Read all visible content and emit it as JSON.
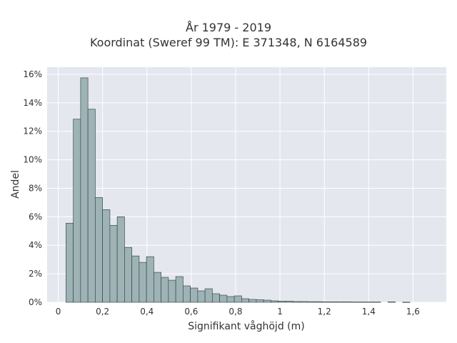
{
  "chart_data": {
    "type": "bar",
    "title": [
      "År 1979 - 2019",
      "Koordinat (Sweref 99 TM): E 371348, N 6164589"
    ],
    "xlabel": "Signifikant våghöjd (m)",
    "ylabel": "Andel",
    "xlim": [
      -0.05,
      1.75
    ],
    "ylim": [
      0,
      16.5
    ],
    "x_ticks": [
      0,
      0.2,
      0.4,
      0.6,
      0.8,
      1.0,
      1.2,
      1.4,
      1.6
    ],
    "x_tick_labels": [
      "0",
      "0,2",
      "0,4",
      "0,6",
      "0,8",
      "1",
      "1,2",
      "1,4",
      "1,6"
    ],
    "y_ticks": [
      0,
      2,
      4,
      6,
      8,
      10,
      12,
      14,
      16
    ],
    "y_tick_labels": [
      "0%",
      "2%",
      "4%",
      "6%",
      "8%",
      "10%",
      "12%",
      "14%",
      "16%"
    ],
    "bin_width": 0.033,
    "bin_start": 0.035,
    "values": [
      5.55,
      12.85,
      15.75,
      13.55,
      7.35,
      6.5,
      5.4,
      6.0,
      3.85,
      3.25,
      2.8,
      3.2,
      2.1,
      1.75,
      1.55,
      1.8,
      1.15,
      1.0,
      0.8,
      0.95,
      0.6,
      0.5,
      0.4,
      0.45,
      0.25,
      0.2,
      0.18,
      0.15,
      0.1,
      0.08,
      0.08,
      0.05,
      0.05,
      0.04,
      0.04,
      0.03,
      0.03,
      0.03,
      0.03,
      0.02,
      0.02,
      0.02,
      0.02,
      0.0,
      0.03,
      0.0,
      0.01,
      0.0,
      0.0,
      0.0,
      0.0
    ],
    "grid": true,
    "colors": {
      "bar_fill": "#9db3b5",
      "bar_edge": "#3c4a4c",
      "plot_bg": "#e5e7ef",
      "grid": "#ffffff"
    }
  }
}
